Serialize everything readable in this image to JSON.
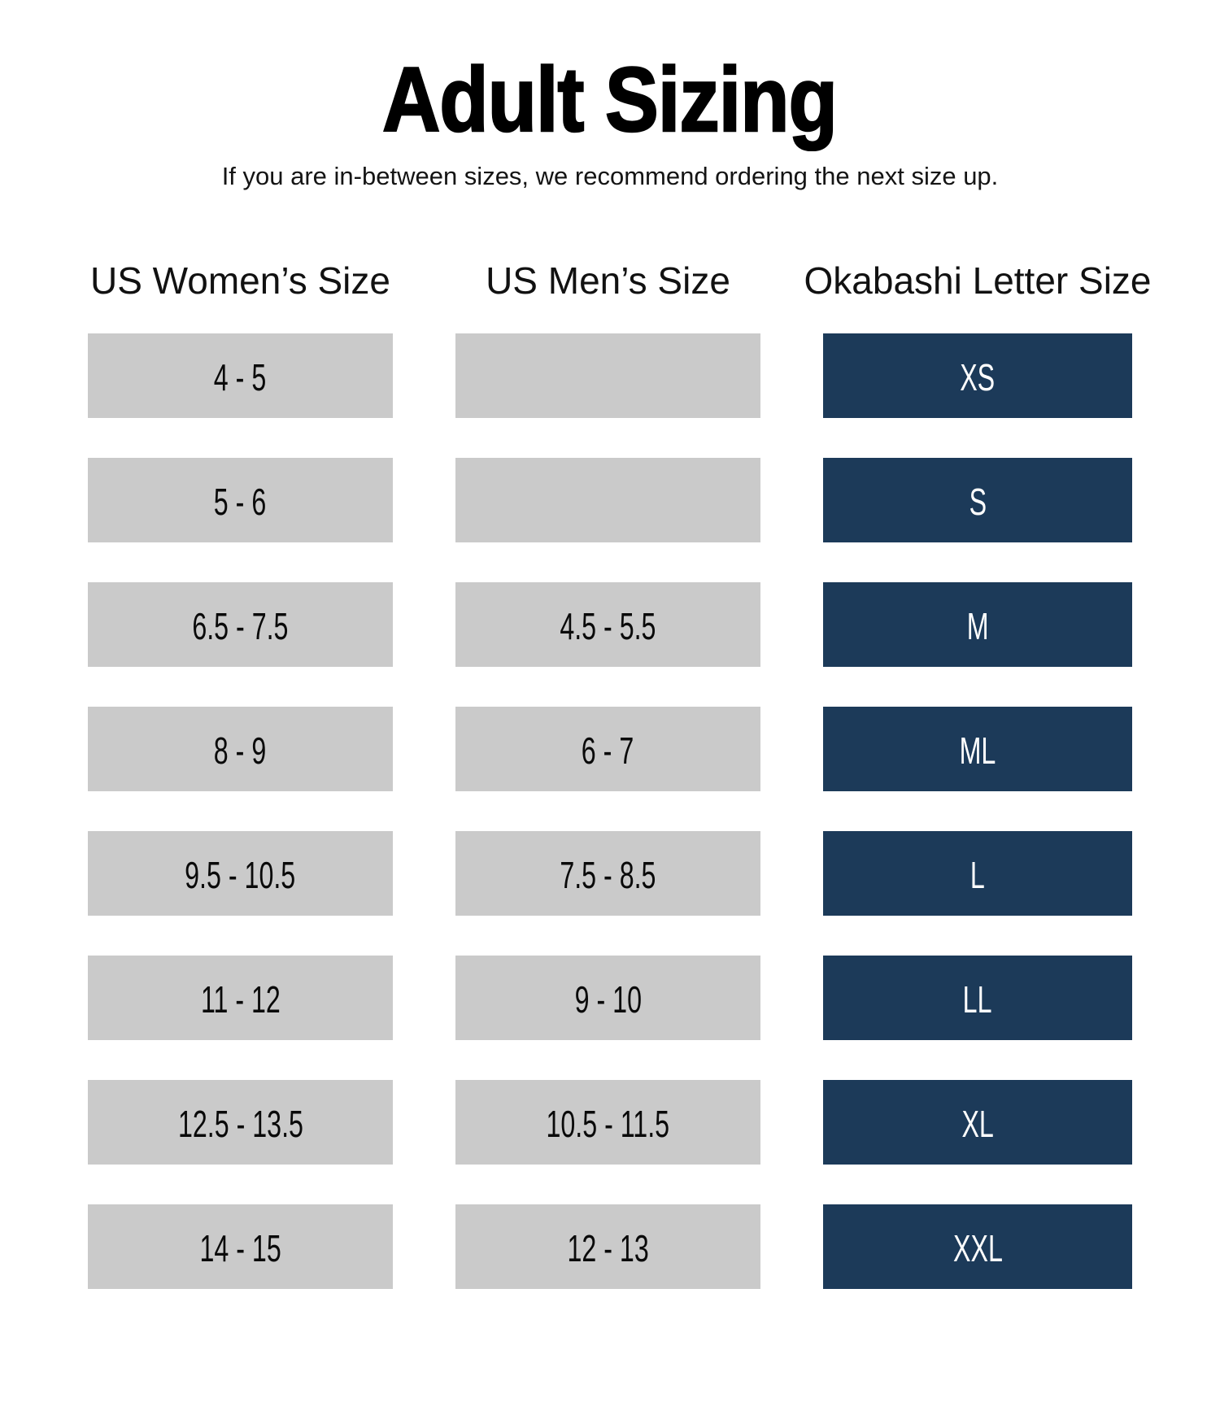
{
  "header": {
    "title": "Adult Sizing",
    "subtitle": "If you are in-between sizes, we recommend ordering the next size up."
  },
  "chart_data": {
    "type": "table",
    "title": "Adult Sizing",
    "columns": [
      "US Women’s Size",
      "US Men’s Size",
      "Okabashi Letter Size"
    ],
    "rows": [
      {
        "us_womens_size": "4 - 5",
        "us_mens_size": "",
        "okabashi_letter_size": "XS"
      },
      {
        "us_womens_size": "5 - 6",
        "us_mens_size": "",
        "okabashi_letter_size": "S"
      },
      {
        "us_womens_size": "6.5 - 7.5",
        "us_mens_size": "4.5 - 5.5",
        "okabashi_letter_size": "M"
      },
      {
        "us_womens_size": "8 - 9",
        "us_mens_size": "6 - 7",
        "okabashi_letter_size": "ML"
      },
      {
        "us_womens_size": "9.5 - 10.5",
        "us_mens_size": "7.5 - 8.5",
        "okabashi_letter_size": "L"
      },
      {
        "us_womens_size": "11 - 12",
        "us_mens_size": "9 - 10",
        "okabashi_letter_size": "LL"
      },
      {
        "us_womens_size": "12.5 - 13.5",
        "us_mens_size": "10.5 - 11.5",
        "okabashi_letter_size": "XL"
      },
      {
        "us_womens_size": "14 - 15",
        "us_mens_size": "12 - 13",
        "okabashi_letter_size": "XXL"
      }
    ]
  },
  "colors": {
    "letter_cell_bg": "#1c3a59",
    "size_cell_bg": "#cacaca",
    "letter_cell_text": "#ffffff",
    "text": "#0a0a0a",
    "background": "#ffffff"
  }
}
